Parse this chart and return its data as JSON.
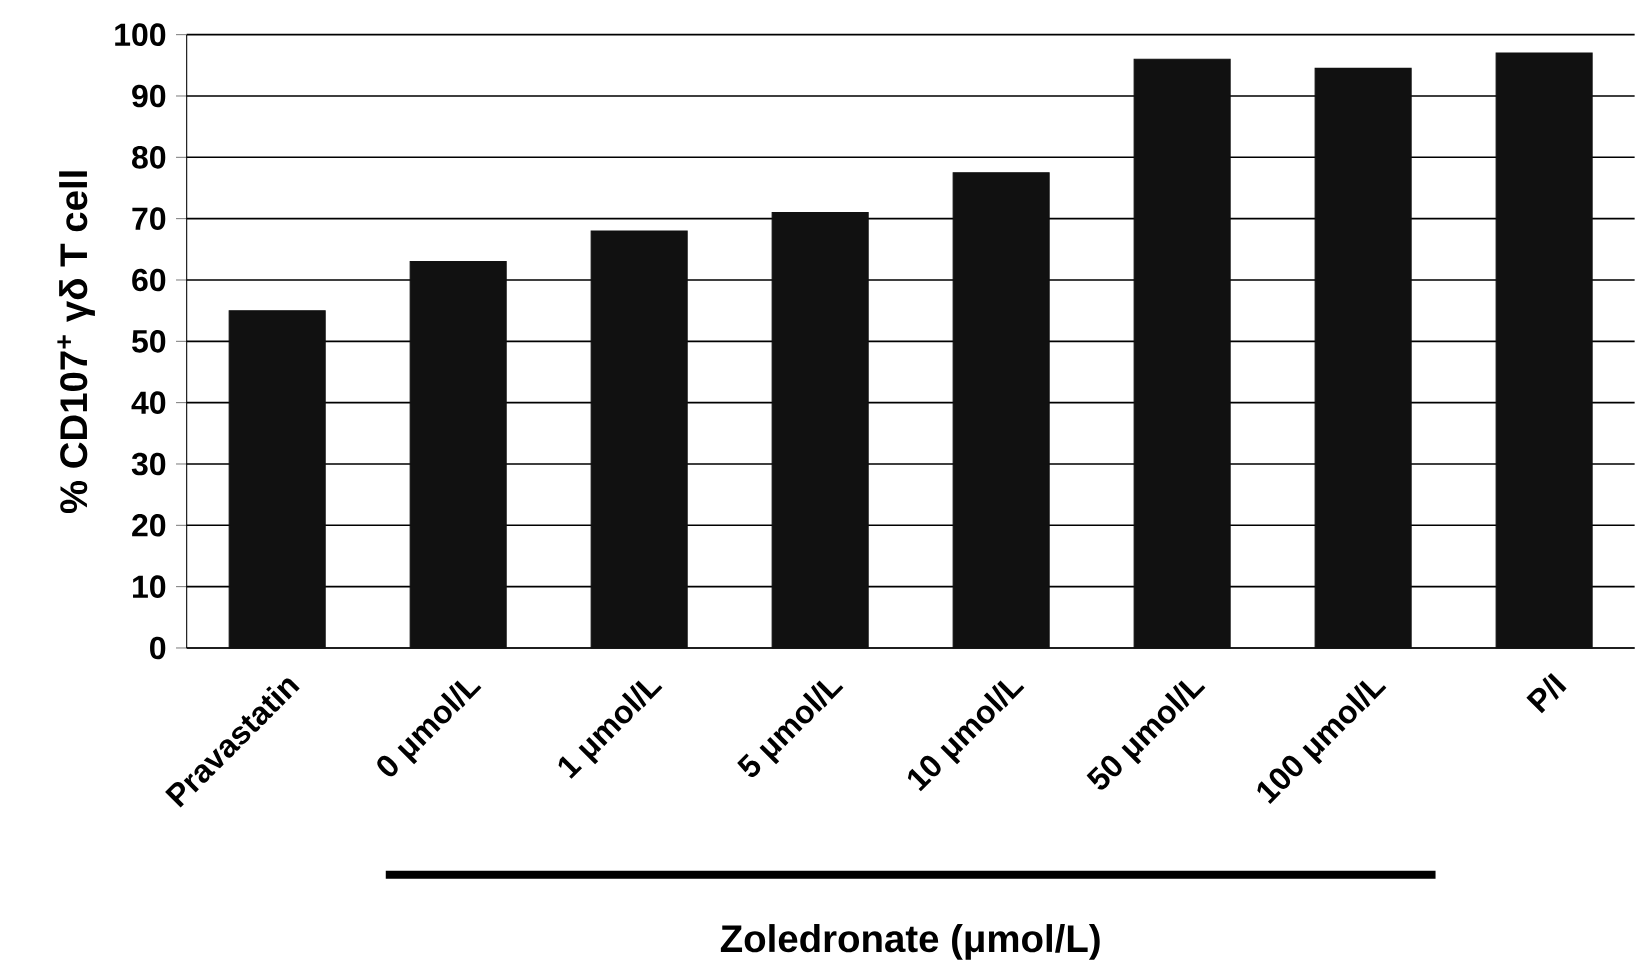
{
  "chart_data": {
    "type": "bar",
    "categories": [
      "Pravastatin",
      "0 μmol/L",
      "1 μmol/L",
      "5 μmol/L",
      "10 μmol/L",
      "50 μmol/L",
      "100 μmol/L",
      "P/I"
    ],
    "values": [
      55,
      63,
      68,
      71,
      77.5,
      96,
      94.5,
      97
    ],
    "color": "#111111",
    "xlabel": "Zoledronate (μmol/L)",
    "ylabel": "% CD107$^{+}$ γδ T cell",
    "ylim": [
      0,
      100
    ],
    "yticks": [
      0,
      10,
      20,
      30,
      40,
      50,
      60,
      70,
      80,
      90,
      100
    ],
    "grid": "y"
  }
}
